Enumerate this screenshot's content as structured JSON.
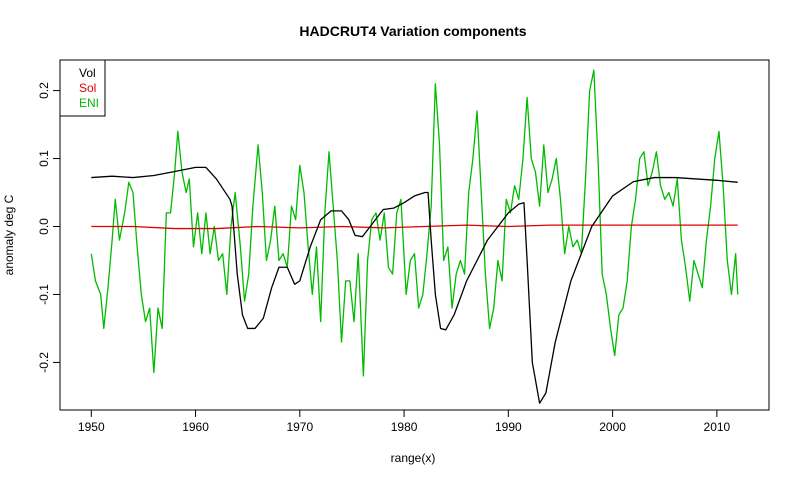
{
  "chart_data": {
    "type": "line",
    "title": "HADCRUT4 Variation components",
    "xlabel": "range(x)",
    "ylabel": "anomaly deg C",
    "xlim": [
      1947,
      2015
    ],
    "ylim": [
      -0.27,
      0.245
    ],
    "x_ticks": [
      1950,
      1960,
      1970,
      1980,
      1990,
      2000,
      2010
    ],
    "x_tick_labels": [
      "1950",
      "1960",
      "1970",
      "1980",
      "1990",
      "2000",
      "2010"
    ],
    "y_ticks": [
      -0.2,
      -0.1,
      0.0,
      0.1,
      0.2
    ],
    "y_tick_labels": [
      "-0.2",
      "-0.1",
      "0.0",
      "0.1",
      "0.2"
    ],
    "grid": false,
    "legend_position": "top-left",
    "series": [
      {
        "name": "Vol",
        "color": "#000000",
        "points": [
          [
            1950,
            0.072
          ],
          [
            1952,
            0.074
          ],
          [
            1954,
            0.072
          ],
          [
            1956,
            0.075
          ],
          [
            1958,
            0.081
          ],
          [
            1960,
            0.087
          ],
          [
            1961,
            0.087
          ],
          [
            1962,
            0.07
          ],
          [
            1963.3,
            0.04
          ],
          [
            1963.5,
            0.03
          ],
          [
            1964,
            -0.07
          ],
          [
            1964.5,
            -0.13
          ],
          [
            1965,
            -0.15
          ],
          [
            1965.7,
            -0.15
          ],
          [
            1966.5,
            -0.135
          ],
          [
            1967.3,
            -0.09
          ],
          [
            1968,
            -0.06
          ],
          [
            1968.8,
            -0.06
          ],
          [
            1969.5,
            -0.085
          ],
          [
            1970,
            -0.08
          ],
          [
            1971,
            -0.03
          ],
          [
            1972,
            0.01
          ],
          [
            1973,
            0.023
          ],
          [
            1974,
            0.023
          ],
          [
            1974.7,
            0.01
          ],
          [
            1975.3,
            -0.013
          ],
          [
            1976,
            -0.015
          ],
          [
            1977,
            0.005
          ],
          [
            1978,
            0.025
          ],
          [
            1979,
            0.027
          ],
          [
            1980,
            0.035
          ],
          [
            1981,
            0.045
          ],
          [
            1982,
            0.05
          ],
          [
            1982.3,
            0.05
          ],
          [
            1982.6,
            -0.02
          ],
          [
            1983,
            -0.1
          ],
          [
            1983.5,
            -0.15
          ],
          [
            1984,
            -0.152
          ],
          [
            1984.8,
            -0.13
          ],
          [
            1986,
            -0.08
          ],
          [
            1988,
            -0.02
          ],
          [
            1990,
            0.02
          ],
          [
            1991,
            0.033
          ],
          [
            1991.5,
            0.035
          ],
          [
            1991.8,
            -0.05
          ],
          [
            1992.3,
            -0.2
          ],
          [
            1993,
            -0.26
          ],
          [
            1993.6,
            -0.245
          ],
          [
            1994.5,
            -0.17
          ],
          [
            1996,
            -0.08
          ],
          [
            1998,
            0.0
          ],
          [
            2000,
            0.045
          ],
          [
            2002,
            0.066
          ],
          [
            2004,
            0.072
          ],
          [
            2006,
            0.072
          ],
          [
            2008,
            0.07
          ],
          [
            2010,
            0.068
          ],
          [
            2012,
            0.065
          ]
        ]
      },
      {
        "name": "Sol",
        "color": "#dd0000",
        "points": [
          [
            1950,
            0.0
          ],
          [
            1954,
            0.0
          ],
          [
            1958,
            -0.003
          ],
          [
            1962,
            -0.003
          ],
          [
            1966,
            0.0
          ],
          [
            1970,
            -0.002
          ],
          [
            1974,
            0.0
          ],
          [
            1978,
            -0.002
          ],
          [
            1982,
            0.0
          ],
          [
            1986,
            0.002
          ],
          [
            1990,
            0.0
          ],
          [
            1994,
            0.002
          ],
          [
            1998,
            0.002
          ],
          [
            2002,
            0.002
          ],
          [
            2006,
            0.002
          ],
          [
            2010,
            0.002
          ],
          [
            2012,
            0.002
          ]
        ]
      },
      {
        "name": "ENI",
        "color": "#00bb00",
        "points": [
          [
            1950,
            -0.04
          ],
          [
            1950.4,
            -0.08
          ],
          [
            1950.9,
            -0.1
          ],
          [
            1951.2,
            -0.15
          ],
          [
            1951.6,
            -0.09
          ],
          [
            1952,
            -0.02
          ],
          [
            1952.3,
            0.04
          ],
          [
            1952.7,
            -0.02
          ],
          [
            1953.2,
            0.02
          ],
          [
            1953.6,
            0.065
          ],
          [
            1954,
            0.05
          ],
          [
            1954.4,
            -0.03
          ],
          [
            1954.8,
            -0.1
          ],
          [
            1955.2,
            -0.14
          ],
          [
            1955.6,
            -0.12
          ],
          [
            1956,
            -0.215
          ],
          [
            1956.4,
            -0.12
          ],
          [
            1956.8,
            -0.15
          ],
          [
            1957.2,
            0.02
          ],
          [
            1957.6,
            0.02
          ],
          [
            1958,
            0.08
          ],
          [
            1958.3,
            0.14
          ],
          [
            1958.7,
            0.08
          ],
          [
            1959.1,
            0.05
          ],
          [
            1959.4,
            0.07
          ],
          [
            1959.8,
            -0.03
          ],
          [
            1960.2,
            0.02
          ],
          [
            1960.6,
            -0.04
          ],
          [
            1961,
            0.02
          ],
          [
            1961.4,
            -0.04
          ],
          [
            1961.8,
            0.0
          ],
          [
            1962.2,
            -0.05
          ],
          [
            1962.6,
            -0.04
          ],
          [
            1963,
            -0.1
          ],
          [
            1963.4,
            0.0
          ],
          [
            1963.8,
            0.05
          ],
          [
            1964.3,
            -0.03
          ],
          [
            1964.7,
            -0.11
          ],
          [
            1965.1,
            -0.07
          ],
          [
            1965.5,
            0.03
          ],
          [
            1966,
            0.12
          ],
          [
            1966.4,
            0.05
          ],
          [
            1966.8,
            -0.05
          ],
          [
            1967.2,
            -0.02
          ],
          [
            1967.6,
            0.03
          ],
          [
            1968,
            -0.05
          ],
          [
            1968.4,
            -0.04
          ],
          [
            1968.8,
            -0.06
          ],
          [
            1969.2,
            0.03
          ],
          [
            1969.6,
            0.01
          ],
          [
            1970,
            0.09
          ],
          [
            1970.4,
            0.05
          ],
          [
            1970.8,
            -0.03
          ],
          [
            1971.2,
            -0.1
          ],
          [
            1971.6,
            -0.03
          ],
          [
            1972,
            -0.14
          ],
          [
            1972.4,
            0.02
          ],
          [
            1972.8,
            0.11
          ],
          [
            1973.2,
            0.03
          ],
          [
            1973.6,
            -0.05
          ],
          [
            1974,
            -0.17
          ],
          [
            1974.4,
            -0.08
          ],
          [
            1974.8,
            -0.08
          ],
          [
            1975.2,
            -0.14
          ],
          [
            1975.6,
            -0.04
          ],
          [
            1976.1,
            -0.22
          ],
          [
            1976.5,
            -0.05
          ],
          [
            1976.9,
            0.01
          ],
          [
            1977.3,
            0.02
          ],
          [
            1977.7,
            -0.02
          ],
          [
            1978.1,
            0.02
          ],
          [
            1978.5,
            -0.06
          ],
          [
            1978.9,
            -0.07
          ],
          [
            1979.3,
            0.02
          ],
          [
            1979.7,
            0.04
          ],
          [
            1980.2,
            -0.1
          ],
          [
            1980.6,
            -0.05
          ],
          [
            1981,
            -0.04
          ],
          [
            1981.4,
            -0.12
          ],
          [
            1981.8,
            -0.1
          ],
          [
            1982.2,
            -0.04
          ],
          [
            1982.6,
            0.03
          ],
          [
            1983,
            0.21
          ],
          [
            1983.4,
            0.12
          ],
          [
            1983.8,
            -0.05
          ],
          [
            1984.2,
            -0.03
          ],
          [
            1984.6,
            -0.12
          ],
          [
            1985,
            -0.07
          ],
          [
            1985.4,
            -0.05
          ],
          [
            1985.8,
            -0.07
          ],
          [
            1986.2,
            0.05
          ],
          [
            1986.6,
            0.1
          ],
          [
            1987,
            0.17
          ],
          [
            1987.4,
            0.05
          ],
          [
            1987.8,
            -0.07
          ],
          [
            1988.2,
            -0.15
          ],
          [
            1988.6,
            -0.12
          ],
          [
            1989,
            -0.05
          ],
          [
            1989.4,
            -0.08
          ],
          [
            1989.8,
            0.04
          ],
          [
            1990.2,
            0.02
          ],
          [
            1990.6,
            0.06
          ],
          [
            1991,
            0.04
          ],
          [
            1991.4,
            0.1
          ],
          [
            1991.8,
            0.19
          ],
          [
            1992.2,
            0.1
          ],
          [
            1992.6,
            0.08
          ],
          [
            1993,
            0.03
          ],
          [
            1993.4,
            0.12
          ],
          [
            1993.8,
            0.05
          ],
          [
            1994.2,
            0.07
          ],
          [
            1994.6,
            0.1
          ],
          [
            1995,
            0.04
          ],
          [
            1995.4,
            -0.04
          ],
          [
            1995.8,
            0.0
          ],
          [
            1996.2,
            -0.03
          ],
          [
            1996.6,
            -0.02
          ],
          [
            1997,
            -0.04
          ],
          [
            1997.4,
            0.07
          ],
          [
            1997.8,
            0.2
          ],
          [
            1998.2,
            0.23
          ],
          [
            1998.6,
            0.1
          ],
          [
            1999,
            -0.07
          ],
          [
            1999.4,
            -0.1
          ],
          [
            1999.8,
            -0.15
          ],
          [
            2000.2,
            -0.19
          ],
          [
            2000.6,
            -0.13
          ],
          [
            2001,
            -0.12
          ],
          [
            2001.4,
            -0.08
          ],
          [
            2001.8,
            0.0
          ],
          [
            2002.2,
            0.04
          ],
          [
            2002.6,
            0.1
          ],
          [
            2003,
            0.11
          ],
          [
            2003.4,
            0.06
          ],
          [
            2003.8,
            0.08
          ],
          [
            2004.2,
            0.11
          ],
          [
            2004.6,
            0.06
          ],
          [
            2005,
            0.04
          ],
          [
            2005.4,
            0.05
          ],
          [
            2005.8,
            0.03
          ],
          [
            2006.2,
            0.07
          ],
          [
            2006.6,
            -0.02
          ],
          [
            2007,
            -0.06
          ],
          [
            2007.4,
            -0.11
          ],
          [
            2007.8,
            -0.05
          ],
          [
            2008.2,
            -0.07
          ],
          [
            2008.6,
            -0.09
          ],
          [
            2009,
            -0.02
          ],
          [
            2009.4,
            0.03
          ],
          [
            2009.8,
            0.1
          ],
          [
            2010.2,
            0.14
          ],
          [
            2010.6,
            0.06
          ],
          [
            2011,
            -0.05
          ],
          [
            2011.4,
            -0.1
          ],
          [
            2011.8,
            -0.04
          ],
          [
            2012,
            -0.1
          ]
        ]
      }
    ]
  }
}
